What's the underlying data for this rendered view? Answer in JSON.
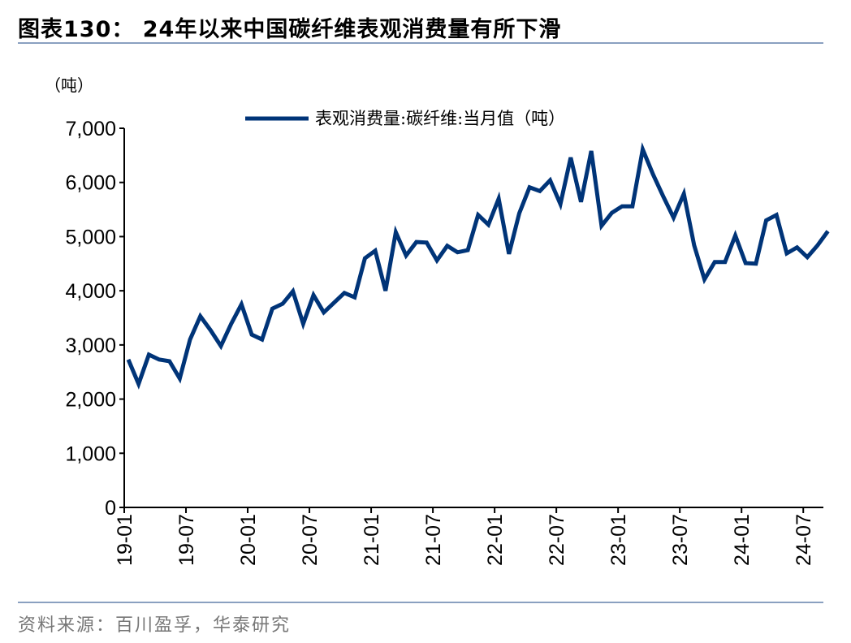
{
  "header": {
    "title": "图表130：  24年以来中国碳纤维表观消费量有所下滑"
  },
  "footer": {
    "source": "资料来源：百川盈孚，华泰研究"
  },
  "chart_data": {
    "type": "line",
    "title": "",
    "ylabel": "（吨）",
    "xlabel": "",
    "ylim": [
      0,
      7000
    ],
    "yticks": [
      0,
      1000,
      2000,
      3000,
      4000,
      5000,
      6000,
      7000
    ],
    "ytick_labels": [
      "0",
      "1,000",
      "2,000",
      "3,000",
      "4,000",
      "5,000",
      "6,000",
      "7,000"
    ],
    "xtick_labels": [
      "19-01",
      "19-07",
      "20-01",
      "20-07",
      "21-01",
      "21-07",
      "22-01",
      "22-07",
      "23-01",
      "23-07",
      "24-01",
      "24-07"
    ],
    "grid": false,
    "legend_position": "top-center",
    "x": [
      "19-01",
      "19-02",
      "19-03",
      "19-04",
      "19-05",
      "19-06",
      "19-07",
      "19-08",
      "19-09",
      "19-10",
      "19-11",
      "19-12",
      "20-01",
      "20-02",
      "20-03",
      "20-04",
      "20-05",
      "20-06",
      "20-07",
      "20-08",
      "20-09",
      "20-10",
      "20-11",
      "20-12",
      "21-01",
      "21-02",
      "21-03",
      "21-04",
      "21-05",
      "21-06",
      "21-07",
      "21-08",
      "21-09",
      "21-10",
      "21-11",
      "21-12",
      "22-01",
      "22-02",
      "22-03",
      "22-04",
      "22-05",
      "22-06",
      "22-07",
      "22-08",
      "22-09",
      "22-10",
      "22-11",
      "22-12",
      "23-01",
      "23-02",
      "23-03",
      "23-04",
      "23-05",
      "23-06",
      "23-07",
      "23-08",
      "23-09",
      "23-10",
      "23-11",
      "23-12",
      "24-01",
      "24-02",
      "24-03",
      "24-04",
      "24-05",
      "24-06",
      "24-07",
      "24-08",
      "24-09"
    ],
    "series": [
      {
        "name": "表观消费量:碳纤维:当月值（吨）",
        "color": "#003478",
        "values": [
          2730,
          2280,
          2820,
          2730,
          2700,
          2380,
          3100,
          3530,
          3270,
          2980,
          3390,
          3750,
          3190,
          3100,
          3670,
          3760,
          3990,
          3390,
          3920,
          3600,
          3780,
          3960,
          3880,
          4600,
          4740,
          4000,
          5080,
          4650,
          4900,
          4890,
          4560,
          4830,
          4710,
          4750,
          5400,
          5220,
          5700,
          4680,
          5430,
          5910,
          5840,
          6040,
          5600,
          6460,
          5640,
          6580,
          5200,
          5440,
          5560,
          5560,
          6610,
          6150,
          5740,
          5350,
          5790,
          4840,
          4210,
          4530,
          4530,
          5020,
          4510,
          4500,
          5300,
          5400,
          4690,
          4800,
          4620,
          4840,
          5100
        ]
      }
    ]
  }
}
